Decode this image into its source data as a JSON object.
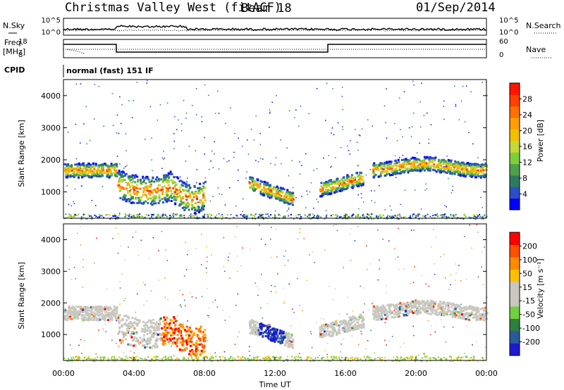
{
  "header": {
    "station": "Christmas Valley West (fitACF)",
    "beam": "Beam 18",
    "date": "01/Sep/2014"
  },
  "top_panels": {
    "nsky_label": "N.Sky",
    "nsearch_label": "N.Search",
    "noise_ticks": [
      "10^5",
      "10^0"
    ],
    "freq_label": "Freq.",
    "freq_unit": "[MHz]",
    "freq_ticks": [
      "18",
      "8"
    ],
    "nave_label": "Nave",
    "nave_ticks": [
      "60",
      "0"
    ],
    "cpid_label": "CPID",
    "cpid_value": "normal (fast) 151 IF"
  },
  "colors": {
    "power": [
      "#0000ff",
      "#2a4fc9",
      "#2f7a5f",
      "#4fa04a",
      "#7fcf3a",
      "#c8d83a",
      "#f0c000",
      "#ffa000",
      "#ff7000",
      "#ff4000",
      "#ff1500"
    ],
    "velocity": [
      "#1b1bd0",
      "#2a5a9a",
      "#2f7f3f",
      "#6fd040",
      "#c8c8c0",
      "#c8c8c0",
      "#ffc000",
      "#ff8c00",
      "#ff5000",
      "#ff0000"
    ]
  },
  "chart_data": [
    {
      "type": "heatmap",
      "name": "power",
      "ylabel": "Slant Range [km]",
      "ylim": [
        180,
        4500
      ],
      "y_ticks": [
        "4000",
        "3000",
        "2000",
        "1000"
      ],
      "colorbar_label": "Power [dB]",
      "colorbar_ticks": [
        "28",
        "24",
        "20",
        "16",
        "12",
        "8",
        "4"
      ]
    },
    {
      "type": "heatmap",
      "name": "velocity",
      "ylabel": "Slant Range [km]",
      "ylim": [
        180,
        4500
      ],
      "y_ticks": [
        "4000",
        "3000",
        "2000",
        "1000"
      ],
      "xlabel": "Time UT",
      "x_ticks": [
        "00:00",
        "04:00",
        "08:00",
        "12:00",
        "16:00",
        "20:00",
        "00:00"
      ],
      "colorbar_label": "Velocity [m s⁻¹]",
      "colorbar_ticks": [
        "200",
        "100",
        "50",
        "15",
        "-15",
        "-50",
        "-100",
        "-200"
      ]
    }
  ]
}
